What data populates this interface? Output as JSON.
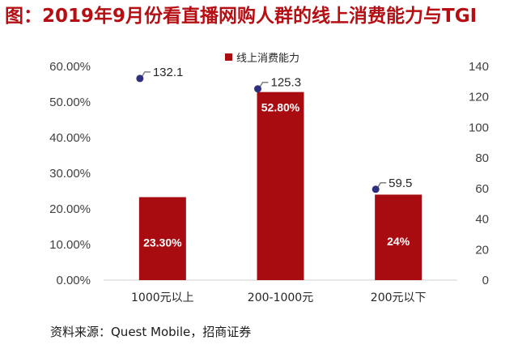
{
  "title": "图：2019年9月份看直播网购人群的线上消费能力与TGI",
  "source": "资料来源：Quest Mobile，招商证券",
  "colors": {
    "bar": "#a80c10",
    "title": "#b50f14",
    "dot": "#2e2f7e"
  },
  "chart_data": {
    "type": "bar",
    "title": "图：2019年9月份看直播网购人群的线上消费能力与TGI",
    "categories": [
      "1000元以上",
      "200-1000元",
      "200元以下"
    ],
    "series": [
      {
        "name": "线上消费能力",
        "type": "bar",
        "axis": "left",
        "values": [
          23.3,
          52.8,
          24.0
        ],
        "labels": [
          "23.30%",
          "52.80%",
          "24%"
        ]
      },
      {
        "name": "TGI",
        "type": "scatter",
        "axis": "right",
        "values": [
          132.1,
          125.3,
          59.5
        ],
        "labels": [
          "132.1",
          "125.3",
          "59.5"
        ]
      }
    ],
    "legend": [
      "线上消费能力"
    ],
    "y_left": {
      "min": 0,
      "max": 60,
      "step": 10,
      "ticks": [
        "0.00%",
        "10.00%",
        "20.00%",
        "30.00%",
        "40.00%",
        "50.00%",
        "60.00%"
      ]
    },
    "y_right": {
      "min": 0,
      "max": 140,
      "step": 20,
      "ticks": [
        "0",
        "20",
        "40",
        "60",
        "80",
        "100",
        "120",
        "140"
      ]
    },
    "grid": false
  }
}
